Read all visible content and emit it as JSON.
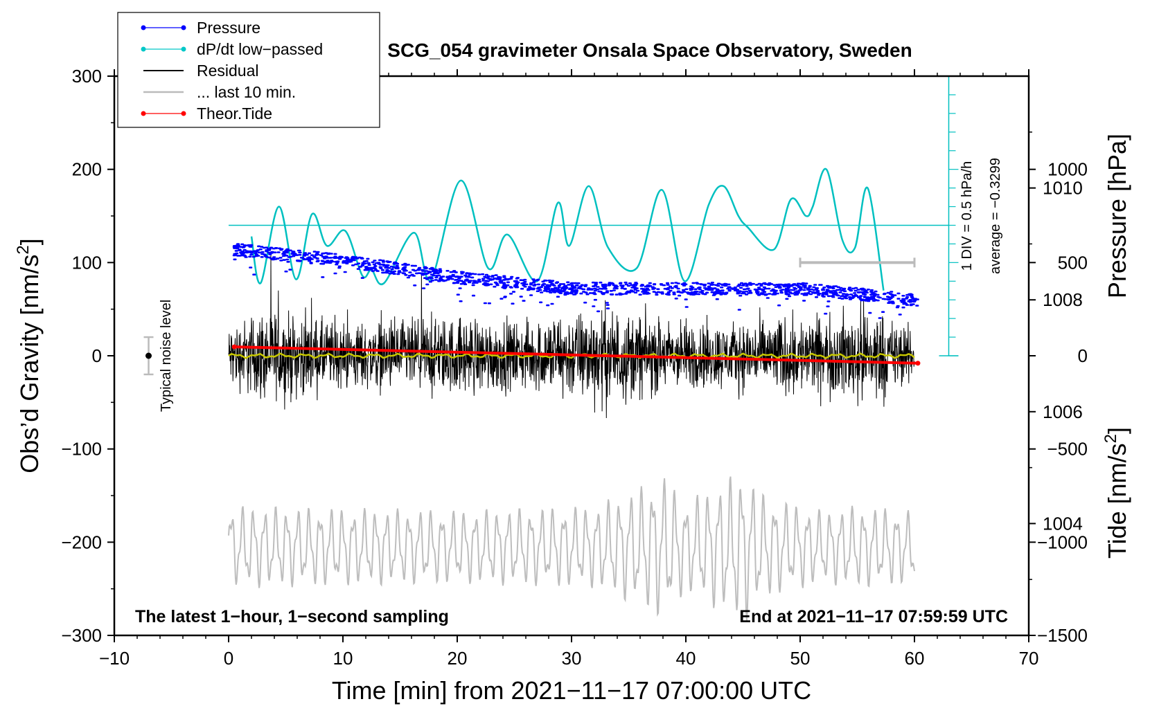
{
  "chart_data": {
    "type": "line",
    "title": "SCG_054 gravimeter Onsala Space Observatory, Sweden",
    "xlabel": "Time [min] from 2021−11−17 07:00:00 UTC",
    "ylabel_left_prefix": "Obs’d Gravity [nm/s",
    "ylabel_left_suffix": "]",
    "ylabel_right_pressure": "Pressure [hPa]",
    "ylabel_right_tide_prefix": "Tide [nm/s",
    "ylabel_right_tide_suffix": "]",
    "unit_superscript": "2",
    "xlim": [
      -10,
      70
    ],
    "ylim_gravity": [
      -300,
      300
    ],
    "ylim_pressure": [
      1002,
      1012
    ],
    "ylim_tide": [
      -1500,
      1500
    ],
    "x_ticks": [
      "−10",
      "0",
      "10",
      "20",
      "30",
      "40",
      "50",
      "60",
      "70"
    ],
    "y_ticks_gravity": [
      "300",
      "200",
      "100",
      "0",
      "−100",
      "−200",
      "−300"
    ],
    "y_ticks_pressure": [
      "1010",
      "1008",
      "1006",
      "1004"
    ],
    "y_ticks_tide": [
      "1000",
      "500",
      "0",
      "−500",
      "−1000",
      "−1500"
    ],
    "legend": [
      {
        "name": "Pressure",
        "color": "#0000ff",
        "marker": "dot"
      },
      {
        "name": "dP/dt low−passed",
        "color": "#00c8c8",
        "marker": "dot"
      },
      {
        "name": "Residual",
        "color": "#000000",
        "marker": "none"
      },
      {
        "name": "... last 10 min.",
        "color": "#bbbbbb",
        "marker": "none"
      },
      {
        "name": "Theor.Tide",
        "color": "#ff0000",
        "marker": "dot"
      }
    ],
    "annotations": {
      "footer_left": "The latest 1−hour, 1−second sampling",
      "footer_right": "End at 2021−11−17 07:59:59 UTC",
      "noise_label": "Typical noise level",
      "div_label": "1 DIV = 0.5 hPa/h",
      "average_label": "average = −0.3299"
    },
    "series": [
      {
        "name": "Pressure",
        "unit": "hPa",
        "x": [
          0.5,
          10,
          20,
          30,
          40,
          50,
          60.3
        ],
        "values": [
          1008.9,
          1008.7,
          1008.4,
          1008.2,
          1008.2,
          1008.2,
          1008.0
        ]
      },
      {
        "name": "dP/dt low−passed",
        "unit": "DIV",
        "x": [
          2,
          2.8,
          4.4,
          5.9,
          7.3,
          8.6,
          10.2,
          11.7,
          12.5,
          13.6,
          16.2,
          17.7,
          20.3,
          22.7,
          24.4,
          27.0,
          28.8,
          29.8,
          31.5,
          33.2,
          35.7,
          37.9,
          39.9,
          42.0,
          43.3,
          44.6,
          45.4,
          47.7,
          49.2,
          50.5,
          51.1,
          52.3,
          53.7,
          54.8,
          55.9,
          57.3
        ],
        "values": [
          6.4,
          3.9,
          8.0,
          4.1,
          7.6,
          5.9,
          6.7,
          4.3,
          4.6,
          3.9,
          6.6,
          4.1,
          9.4,
          4.7,
          6.5,
          4.0,
          8.2,
          5.9,
          9.1,
          5.8,
          4.7,
          8.9,
          4.0,
          8.1,
          9.1,
          7.5,
          6.9,
          5.7,
          8.4,
          7.5,
          8.0,
          10.0,
          6.2,
          5.8,
          9.0,
          3.5
        ]
      },
      {
        "name": "Residual",
        "unit": "nm/s2",
        "x_start": 0,
        "x_end": 60,
        "envelope": [
          [
            0,
            45
          ],
          [
            3,
            70
          ],
          [
            10,
            50
          ],
          [
            16,
            55
          ],
          [
            21,
            60
          ],
          [
            26,
            50
          ],
          [
            28,
            62
          ],
          [
            33,
            75
          ],
          [
            38,
            55
          ],
          [
            44,
            50
          ],
          [
            49,
            60
          ],
          [
            53,
            60
          ],
          [
            56,
            80
          ],
          [
            58,
            55
          ],
          [
            60,
            40
          ]
        ]
      },
      {
        "name": "Residual running mean",
        "unit": "nm/s2",
        "x": [
          0,
          60
        ],
        "values": [
          0,
          0
        ]
      },
      {
        "name": "... last 10 min.",
        "unit": "nm/s2",
        "x_start": 0,
        "x_end": 60,
        "offset": -205,
        "envelope": [
          [
            0,
            45
          ],
          [
            20,
            40
          ],
          [
            32,
            45
          ],
          [
            36,
            65
          ],
          [
            38,
            80
          ],
          [
            40,
            50
          ],
          [
            43,
            70
          ],
          [
            45,
            85
          ],
          [
            47,
            55
          ],
          [
            52,
            40
          ],
          [
            55,
            45
          ],
          [
            60,
            40
          ]
        ]
      },
      {
        "name": "Theor.Tide",
        "unit": "nm/s2",
        "x": [
          0.5,
          60.3
        ],
        "values": [
          48,
          -40
        ]
      }
    ],
    "noise_level": {
      "x": -7,
      "center": 0,
      "half_range": 20
    },
    "window_bar": {
      "x": [
        50,
        60
      ],
      "y_tide": 500
    }
  }
}
